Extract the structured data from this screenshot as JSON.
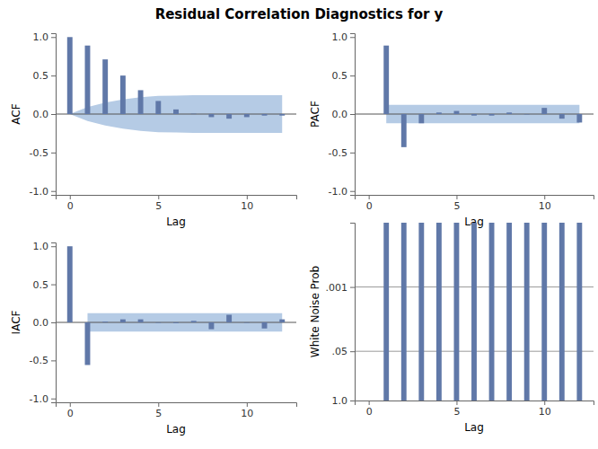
{
  "title": "Residual Correlation Diagnostics for y",
  "chart_data": [
    {
      "type": "bar",
      "y_label": "ACF",
      "x_label": "Lag",
      "color": "#6078a8",
      "x": [
        0,
        1,
        2,
        3,
        4,
        5,
        6,
        7,
        8,
        9,
        10,
        11,
        12
      ],
      "values": [
        1.0,
        0.89,
        0.71,
        0.5,
        0.31,
        0.17,
        0.06,
        0.005,
        -0.04,
        -0.06,
        -0.04,
        -0.02,
        -0.02
      ],
      "confidence_upper": [
        0.0,
        0.09,
        0.15,
        0.19,
        0.22,
        0.235,
        0.24,
        0.245,
        0.245,
        0.245,
        0.245,
        0.245,
        0.245
      ],
      "confidence_lower": [
        0.0,
        -0.09,
        -0.15,
        -0.19,
        -0.22,
        -0.235,
        -0.24,
        -0.245,
        -0.245,
        -0.245,
        -0.245,
        -0.245,
        -0.245
      ],
      "xlim": [
        -0.8,
        12.8
      ],
      "xticks": [
        0,
        5,
        10
      ],
      "ylim": [
        -1.05,
        1.05
      ],
      "yticks": [
        {
          "value": -1,
          "label": "-1.0"
        },
        {
          "value": -0.5,
          "label": "-0.5"
        },
        {
          "value": 0,
          "label": "0.0"
        },
        {
          "value": 0.5,
          "label": "0.5"
        },
        {
          "value": 1,
          "label": "1.0"
        }
      ],
      "reference_lines": [
        0
      ]
    },
    {
      "type": "bar",
      "y_label": "PACF",
      "x_label": "Lag",
      "color": "#6078a8",
      "x": [
        0,
        1,
        2,
        3,
        4,
        5,
        6,
        7,
        8,
        9,
        10,
        11,
        12
      ],
      "values": [
        null,
        0.89,
        -0.43,
        -0.12,
        0.02,
        0.04,
        -0.02,
        -0.02,
        0.02,
        0.0,
        0.08,
        -0.06,
        -0.11
      ],
      "confidence_upper": [
        null,
        0.12,
        0.12,
        0.12,
        0.12,
        0.12,
        0.12,
        0.12,
        0.12,
        0.12,
        0.12,
        0.12,
        0.12
      ],
      "confidence_lower": [
        null,
        -0.12,
        -0.12,
        -0.12,
        -0.12,
        -0.12,
        -0.12,
        -0.12,
        -0.12,
        -0.12,
        -0.12,
        -0.12,
        -0.12
      ],
      "xlim": [
        -0.8,
        12.8
      ],
      "xticks": [
        0,
        5,
        10
      ],
      "ylim": [
        -1.05,
        1.05
      ],
      "yticks": [
        {
          "value": -1,
          "label": "-1.0"
        },
        {
          "value": -0.5,
          "label": "-0.5"
        },
        {
          "value": 0,
          "label": "0.0"
        },
        {
          "value": 0.5,
          "label": "0.5"
        },
        {
          "value": 1,
          "label": "1.0"
        }
      ],
      "reference_lines": [
        0
      ]
    },
    {
      "type": "bar",
      "y_label": "IACF",
      "x_label": "Lag",
      "color": "#6078a8",
      "x": [
        0,
        1,
        2,
        3,
        4,
        5,
        6,
        7,
        8,
        9,
        10,
        11,
        12
      ],
      "values": [
        1.0,
        -0.56,
        0.01,
        0.04,
        0.04,
        0.0,
        -0.01,
        0.02,
        -0.09,
        0.1,
        0.0,
        -0.08,
        0.04
      ],
      "confidence_upper": [
        null,
        0.12,
        0.12,
        0.12,
        0.12,
        0.12,
        0.12,
        0.12,
        0.12,
        0.12,
        0.12,
        0.12,
        0.12
      ],
      "confidence_lower": [
        null,
        -0.12,
        -0.12,
        -0.12,
        -0.12,
        -0.12,
        -0.12,
        -0.12,
        -0.12,
        -0.12,
        -0.12,
        -0.12,
        -0.12
      ],
      "xlim": [
        -0.8,
        12.8
      ],
      "xticks": [
        0,
        5,
        10
      ],
      "ylim": [
        -1.05,
        1.05
      ],
      "yticks": [
        {
          "value": -1,
          "label": "-1.0"
        },
        {
          "value": -0.5,
          "label": "-0.5"
        },
        {
          "value": 0,
          "label": "0.0"
        },
        {
          "value": 0.5,
          "label": "0.5"
        },
        {
          "value": 1,
          "label": "1.0"
        }
      ],
      "reference_lines": [
        0
      ]
    },
    {
      "type": "bar",
      "log": "y",
      "y_label": "White Noise Prob",
      "x_label": "Lag",
      "color": "#6078a8",
      "x": [
        0,
        1,
        2,
        3,
        4,
        5,
        6,
        7,
        8,
        9,
        10,
        11,
        12
      ],
      "values": [
        null,
        2e-05,
        2e-05,
        2e-05,
        2e-05,
        2e-05,
        2e-05,
        2e-05,
        2e-05,
        2e-05,
        2e-05,
        2e-05,
        2e-05
      ],
      "xlim": [
        -0.8,
        12.8
      ],
      "xticks": [
        0,
        5,
        10
      ],
      "ylim": [
        1,
        2e-05
      ],
      "yticks": [
        {
          "value": 1,
          "label": "1.0"
        },
        {
          "value": 0.05,
          "label": ".05"
        },
        {
          "value": 0.001,
          "label": ".001"
        }
      ],
      "reference_lines": [
        0.05,
        0.001
      ]
    }
  ]
}
